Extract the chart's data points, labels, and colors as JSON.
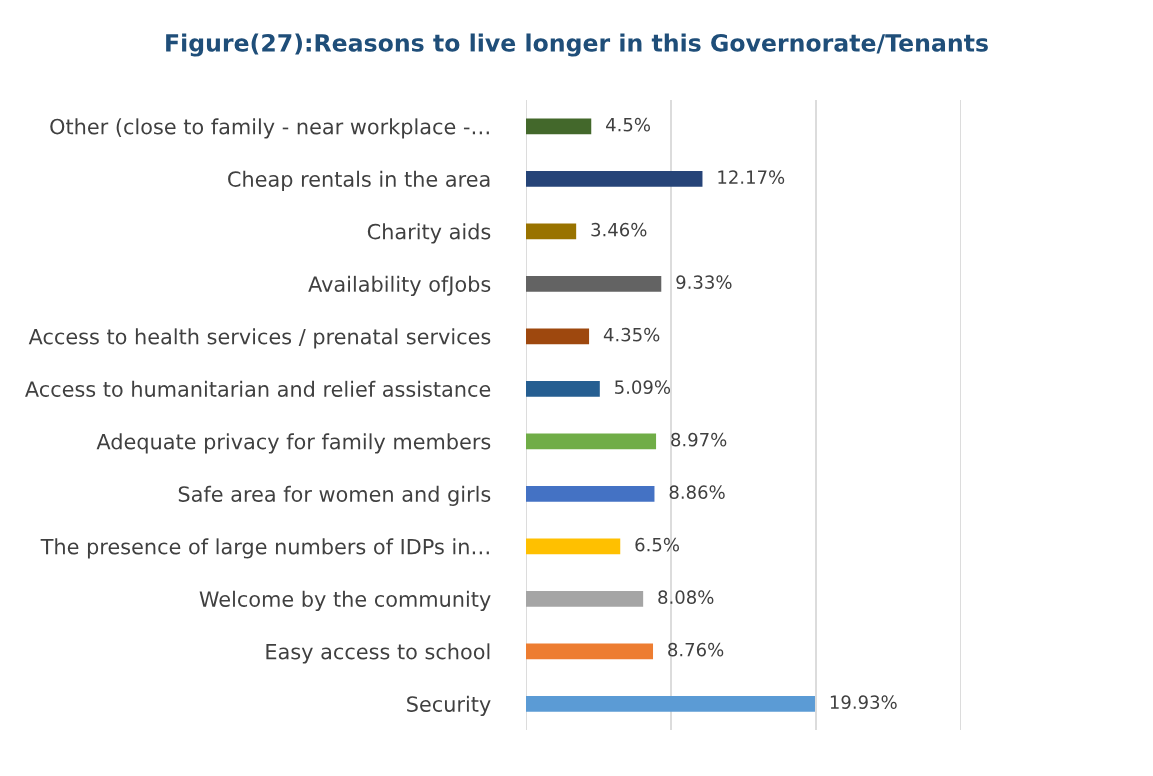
{
  "chart_data": {
    "type": "bar",
    "orientation": "horizontal",
    "title": "Figure(27):Reasons to live longer in this Governorate/Tenants",
    "categories": [
      "Other (close to family - near workplace -…",
      "Cheap rentals in the area",
      "Charity aids",
      "Availability ofJobs",
      "Access to health services / prenatal services",
      "Access to humanitarian and relief assistance",
      "Adequate privacy for family members",
      "Safe area for women and girls",
      "The presence of large numbers of IDPs in…",
      "Welcome by the community",
      "Easy access to school",
      "Security"
    ],
    "values": [
      4.5,
      12.17,
      3.46,
      9.33,
      4.35,
      5.09,
      8.97,
      8.86,
      6.5,
      8.08,
      8.76,
      19.93
    ],
    "value_labels": [
      "4.5%",
      "12.17%",
      "3.46%",
      "9.33%",
      "4.35%",
      "5.09%",
      "8.97%",
      "8.86%",
      "6.5%",
      "8.08%",
      "8.76%",
      "19.93%"
    ],
    "colors": [
      "#43682b",
      "#264478",
      "#997300",
      "#636363",
      "#9e480e",
      "#255e91",
      "#70ad47",
      "#4472c4",
      "#ffc000",
      "#a5a5a5",
      "#ed7d31",
      "#5b9bd5"
    ],
    "xlim": [
      0,
      30
    ],
    "xticks": [
      {
        "value": 0,
        "label": null
      },
      {
        "value": 10,
        "label": null
      },
      {
        "value": 20,
        "label": null
      },
      {
        "value": 30,
        "label": null
      }
    ],
    "grid": "x",
    "tick_labels": "y"
  }
}
